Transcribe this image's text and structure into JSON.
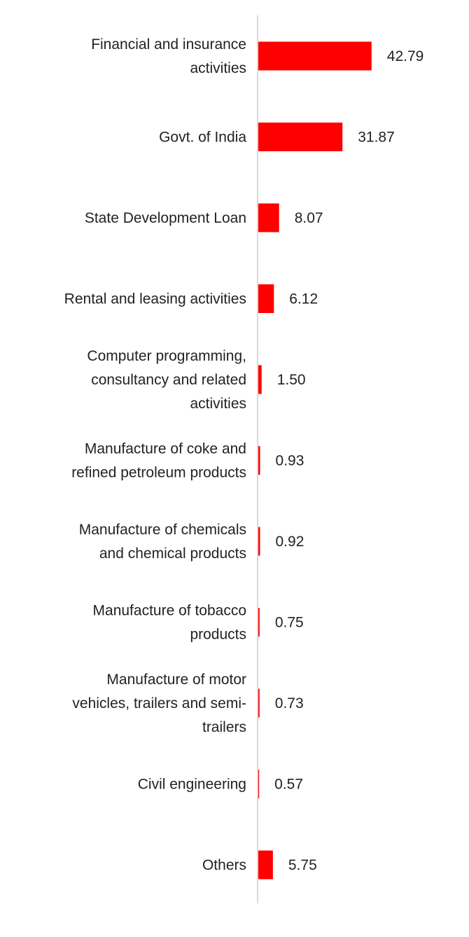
{
  "colors": {
    "bar": "#ff0000",
    "axis": "#d9d9d9",
    "text": "#222222"
  },
  "chart_data": {
    "type": "bar",
    "orientation": "horizontal",
    "title": "",
    "xlabel": "",
    "ylabel": "",
    "grid": false,
    "legend": "none",
    "xlim": [
      0,
      46
    ],
    "categories": [
      {
        "lines": [
          "Financial and insurance",
          "activities"
        ]
      },
      {
        "lines": [
          "Govt. of India"
        ]
      },
      {
        "lines": [
          "State Development Loan"
        ]
      },
      {
        "lines": [
          "Rental and leasing activities"
        ]
      },
      {
        "lines": [
          "Computer programming,",
          "consultancy and related",
          "activities"
        ]
      },
      {
        "lines": [
          "Manufacture of coke and",
          "refined petroleum products"
        ]
      },
      {
        "lines": [
          "Manufacture of chemicals",
          "and chemical products"
        ]
      },
      {
        "lines": [
          "Manufacture of tobacco",
          "products"
        ]
      },
      {
        "lines": [
          "Manufacture of motor",
          "vehicles, trailers and semi-",
          "trailers"
        ]
      },
      {
        "lines": [
          "Civil engineering"
        ]
      },
      {
        "lines": [
          "Others"
        ]
      }
    ],
    "values": [
      42.79,
      31.87,
      8.07,
      6.12,
      1.5,
      0.93,
      0.92,
      0.75,
      0.73,
      0.57,
      5.75
    ],
    "value_labels": [
      "42.79",
      "31.87",
      "8.07",
      "6.12",
      "1.50",
      "0.93",
      "0.92",
      "0.75",
      "0.73",
      "0.57",
      "5.75"
    ]
  }
}
